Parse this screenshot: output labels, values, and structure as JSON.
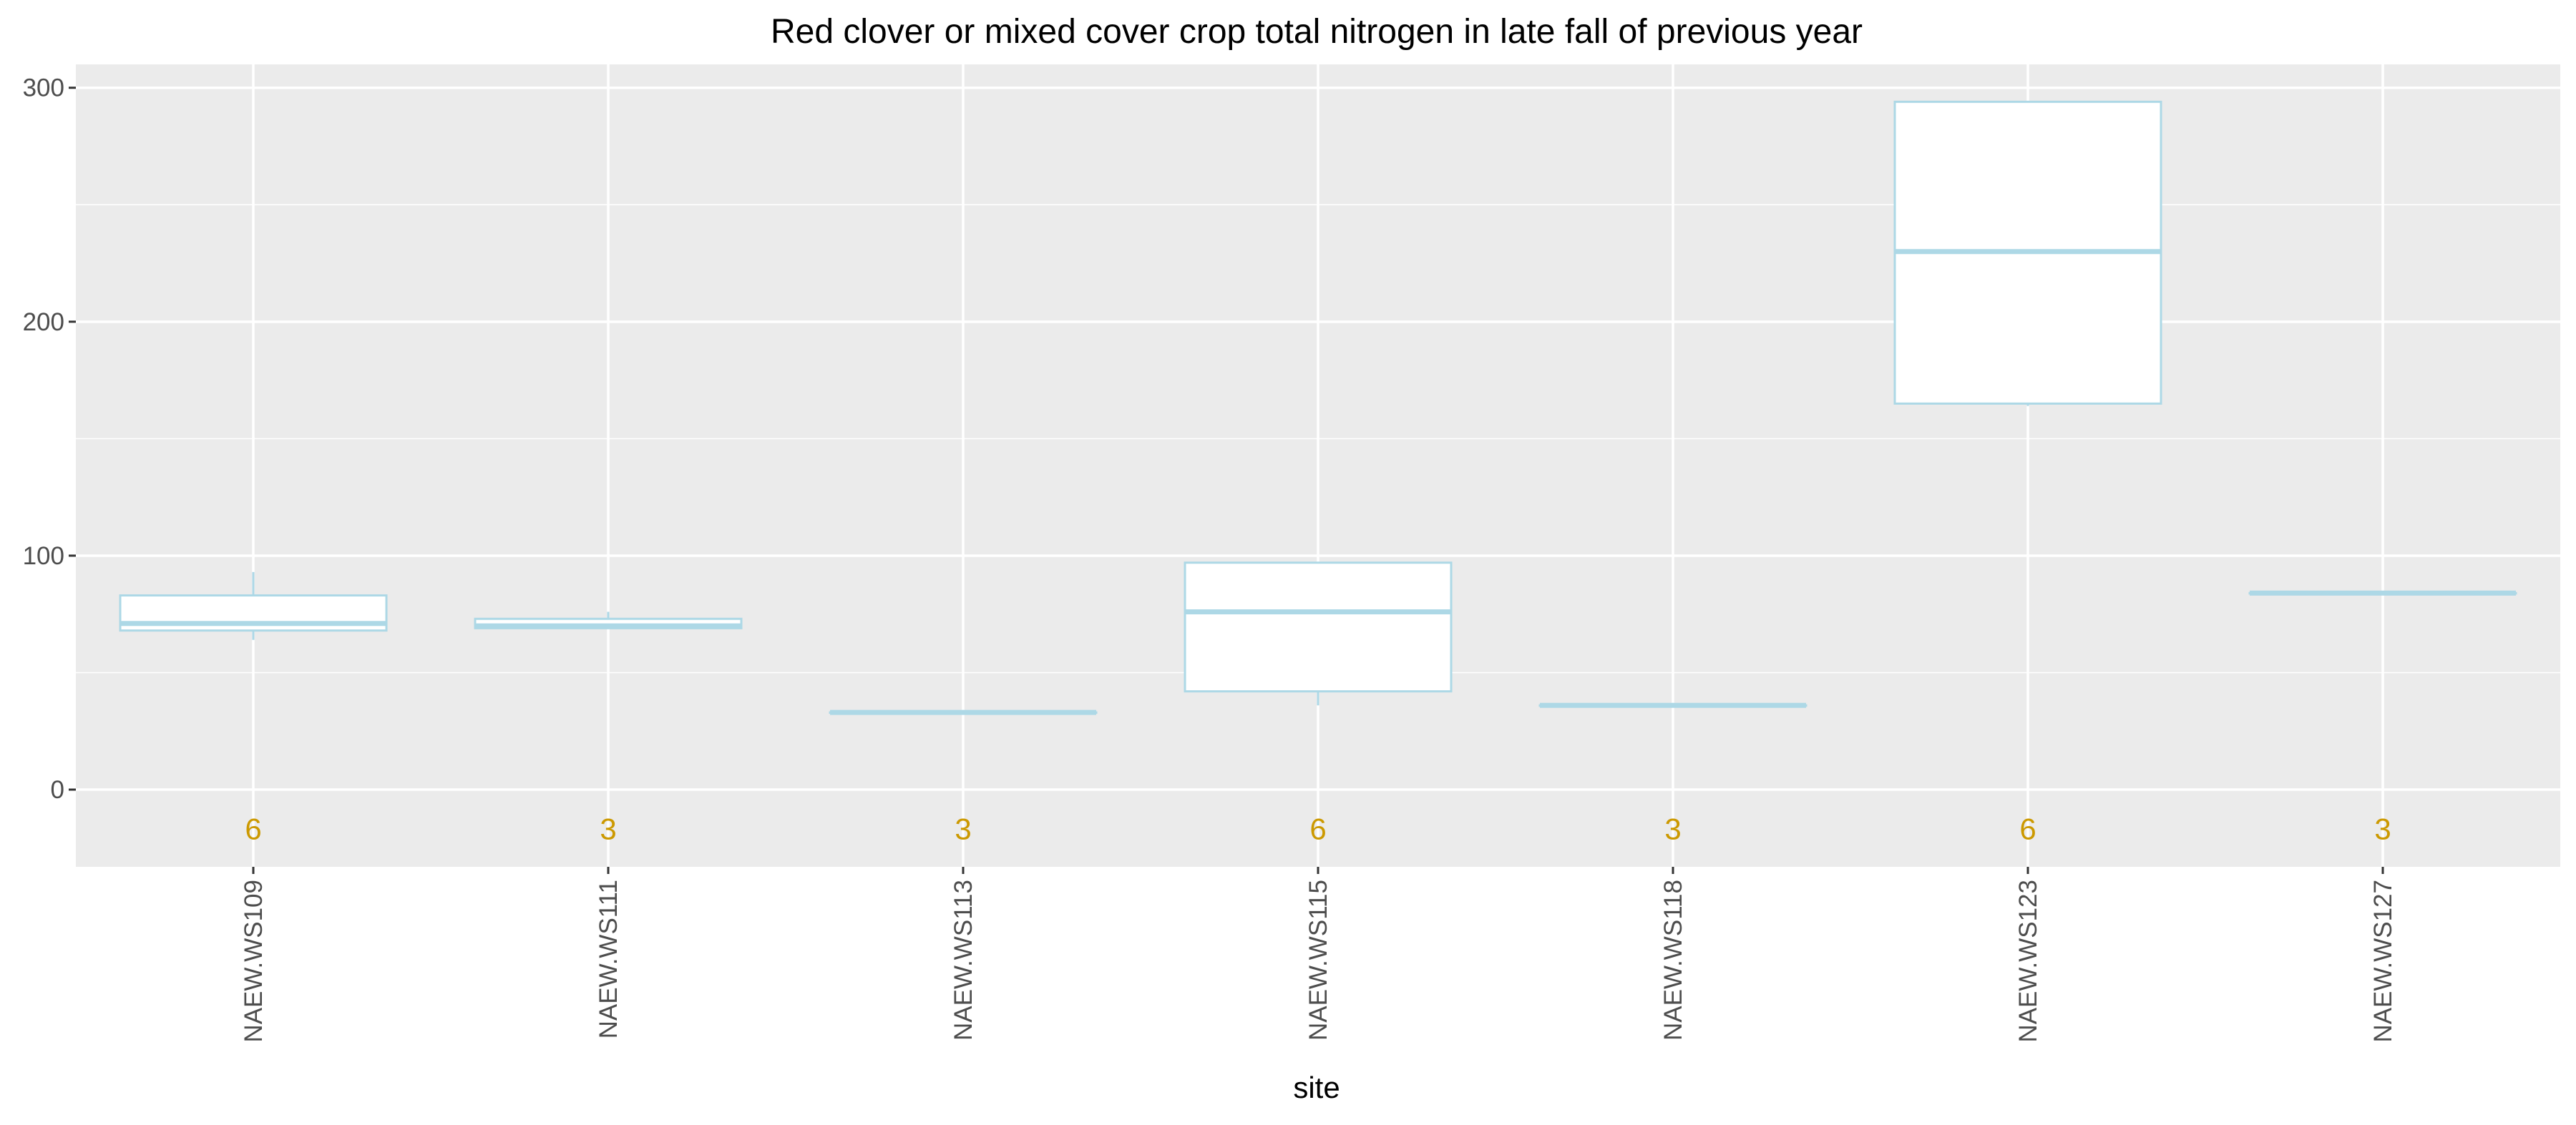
{
  "chart_data": {
    "type": "box",
    "title": "Red clover or mixed cover crop total nitrogen in late fall of previous year",
    "xlabel": "site",
    "ylabel": "",
    "ylim": [
      -33,
      310
    ],
    "y_ticks": [
      0,
      100,
      200,
      300
    ],
    "grid": true,
    "legend": "none",
    "categories": [
      "NAEW.WS109",
      "NAEW.WS111",
      "NAEW.WS113",
      "NAEW.WS115",
      "NAEW.WS118",
      "NAEW.WS123",
      "NAEW.WS127"
    ],
    "boxes": [
      {
        "site": "NAEW.WS109",
        "min": 64,
        "q1": 68,
        "median": 71,
        "q3": 83,
        "max": 93,
        "n": "6"
      },
      {
        "site": "NAEW.WS111",
        "min": 69,
        "q1": 69,
        "median": 70,
        "q3": 73,
        "max": 76,
        "n": "3"
      },
      {
        "site": "NAEW.WS113",
        "min": 33,
        "q1": 33,
        "median": 33,
        "q3": 33,
        "max": 33,
        "n": "3"
      },
      {
        "site": "NAEW.WS115",
        "min": 36,
        "q1": 42,
        "median": 76,
        "q3": 97,
        "max": 97,
        "n": "6"
      },
      {
        "site": "NAEW.WS118",
        "min": 36,
        "q1": 36,
        "median": 36,
        "q3": 36,
        "max": 36,
        "n": "3"
      },
      {
        "site": "NAEW.WS123",
        "min": 164,
        "q1": 165,
        "median": 230,
        "q3": 294,
        "max": 294,
        "n": "6"
      },
      {
        "site": "NAEW.WS127",
        "min": 84,
        "q1": 84,
        "median": 84,
        "q3": 84,
        "max": 84,
        "n": "3"
      }
    ],
    "colors": {
      "panel_background": "#ebebeb",
      "grid_major": "#ffffff",
      "box_outline": "#add8e6",
      "box_fill": "#ffffff",
      "count_label": "#cc9900",
      "tick_label": "#4d4d4d",
      "tick_mark": "#333333",
      "title": "#000000"
    }
  }
}
